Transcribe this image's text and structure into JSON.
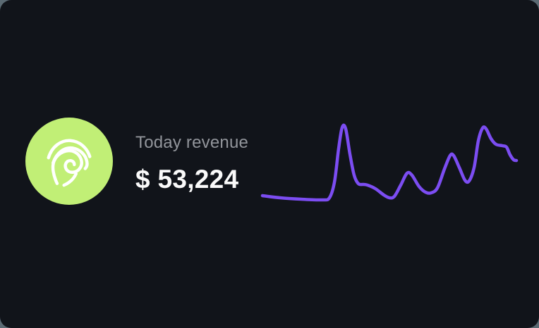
{
  "widget": {
    "label": "Today revenue",
    "value": "$ 53,224"
  },
  "icon": {
    "name": "fingerprint",
    "background_color": "#c1ef76",
    "glyph_color": "#ffffff"
  },
  "colors": {
    "page_background": "#5b6a73",
    "card_background": "#11141a",
    "label_text": "#92959b",
    "value_text": "#fafafa",
    "line": "#7c4df2"
  },
  "chart_data": {
    "type": "line",
    "title": "Today revenue sparkline",
    "xlabel": "",
    "ylabel": "",
    "tick_labels": "none",
    "grid": false,
    "axes_visible": false,
    "legend": "none",
    "line_color": "#7c4df2",
    "stroke_width": 4.5,
    "coordinate_space": "pixels, viewBox 360x112, y increases downward",
    "points": [
      [
        0,
        103
      ],
      [
        25,
        106
      ],
      [
        55,
        108
      ],
      [
        85,
        109
      ],
      [
        95,
        106
      ],
      [
        102,
        84
      ],
      [
        108,
        36
      ],
      [
        113,
        6
      ],
      [
        118,
        8
      ],
      [
        124,
        44
      ],
      [
        130,
        74
      ],
      [
        136,
        86
      ],
      [
        143,
        87
      ],
      [
        149,
        88
      ],
      [
        160,
        93
      ],
      [
        172,
        102
      ],
      [
        180,
        106
      ],
      [
        187,
        104
      ],
      [
        196,
        88
      ],
      [
        205,
        71
      ],
      [
        212,
        74
      ],
      [
        222,
        90
      ],
      [
        231,
        98
      ],
      [
        239,
        99
      ],
      [
        248,
        92
      ],
      [
        258,
        65
      ],
      [
        266,
        46
      ],
      [
        271,
        46
      ],
      [
        279,
        63
      ],
      [
        287,
        81
      ],
      [
        293,
        82
      ],
      [
        300,
        63
      ],
      [
        306,
        25
      ],
      [
        312,
        7
      ],
      [
        317,
        8
      ],
      [
        324,
        22
      ],
      [
        331,
        30
      ],
      [
        340,
        32
      ],
      [
        346,
        34
      ],
      [
        351,
        45
      ],
      [
        356,
        52
      ],
      [
        360,
        53
      ]
    ]
  }
}
